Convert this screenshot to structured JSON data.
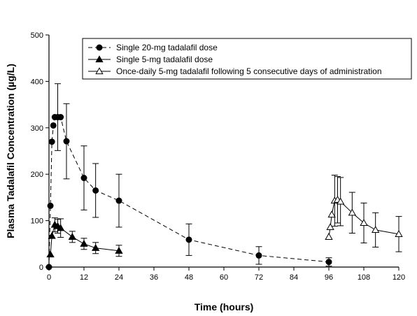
{
  "chart_data": {
    "type": "scatter",
    "title": "",
    "xlabel": "Time (hours)",
    "ylabel": "Plasma Tadalafil Concentration (µg/L)",
    "xlim": [
      0,
      120
    ],
    "ylim": [
      0,
      500
    ],
    "xticks": [
      0,
      12,
      24,
      36,
      48,
      60,
      72,
      84,
      96,
      108,
      120
    ],
    "yticks": [
      0,
      100,
      200,
      300,
      400,
      500
    ],
    "grid": false,
    "legend_position": "top",
    "series": [
      {
        "name": "Single 20-mg tadalafil dose",
        "marker": "filled-circle",
        "line": "dashed",
        "points": [
          {
            "x": 0,
            "y": 0
          },
          {
            "x": 0.5,
            "y": 132
          },
          {
            "x": 1,
            "y": 270
          },
          {
            "x": 1.5,
            "y": 305
          },
          {
            "x": 2,
            "y": 323,
            "err": 0
          },
          {
            "x": 3,
            "y": 323,
            "err": 72
          },
          {
            "x": 4,
            "y": 323,
            "err": 0
          },
          {
            "x": 6,
            "y": 271,
            "err": 81
          },
          {
            "x": 12,
            "y": 192,
            "err": 69
          },
          {
            "x": 16,
            "y": 165,
            "err": 58
          },
          {
            "x": 24,
            "y": 143,
            "err": 57
          },
          {
            "x": 48,
            "y": 59,
            "err": 34
          },
          {
            "x": 72,
            "y": 25,
            "err": 19
          },
          {
            "x": 96,
            "y": 11,
            "err": 9
          }
        ]
      },
      {
        "name": "Single 5-mg tadalafil dose",
        "marker": "filled-triangle",
        "line": "solid",
        "points": [
          {
            "x": 0.5,
            "y": 27
          },
          {
            "x": 1,
            "y": 67
          },
          {
            "x": 2,
            "y": 91,
            "err": 15
          },
          {
            "x": 3,
            "y": 88,
            "err": 15
          },
          {
            "x": 4,
            "y": 84,
            "err": 20
          },
          {
            "x": 8,
            "y": 65,
            "err": 12
          },
          {
            "x": 12,
            "y": 50,
            "err": 12
          },
          {
            "x": 16,
            "y": 41,
            "err": 12
          },
          {
            "x": 24,
            "y": 35,
            "err": 12
          }
        ]
      },
      {
        "name": "Once-daily 5-mg tadalafil following 5 consecutive days of administration",
        "marker": "open-triangle",
        "line": "solid",
        "points": [
          {
            "x": 96,
            "y": 65
          },
          {
            "x": 96.5,
            "y": 86
          },
          {
            "x": 97,
            "y": 113
          },
          {
            "x": 98,
            "y": 143,
            "err": 55
          },
          {
            "x": 99,
            "y": 145,
            "err": 50
          },
          {
            "x": 100,
            "y": 141,
            "err": 52
          },
          {
            "x": 104,
            "y": 117,
            "err": 44
          },
          {
            "x": 108,
            "y": 95,
            "err": 43
          },
          {
            "x": 112,
            "y": 80,
            "err": 37
          },
          {
            "x": 120,
            "y": 71,
            "err": 38
          }
        ]
      }
    ]
  }
}
